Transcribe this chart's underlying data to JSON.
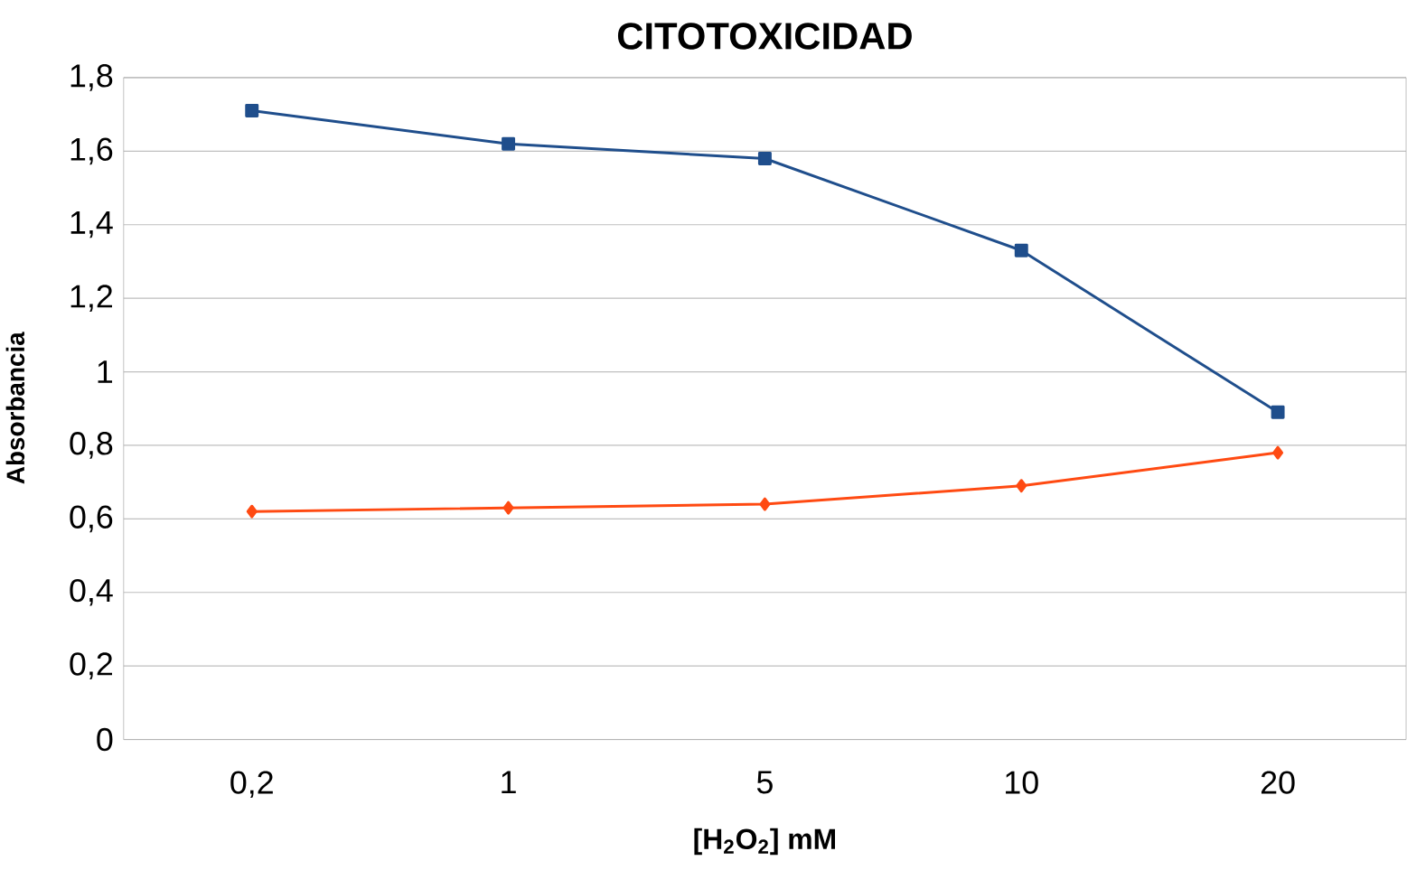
{
  "chart_data": {
    "type": "line",
    "title": "CITOTOXICIDAD",
    "xlabel": "[H$_{2}$O$_{2}$] mM",
    "ylabel": "Absorbancia",
    "categories": [
      "0,2",
      "1",
      "5",
      "10",
      "20"
    ],
    "series": [
      {
        "color": "#1f4e8c",
        "marker": "square",
        "values": [
          1.71,
          1.62,
          1.58,
          1.33,
          0.89
        ]
      },
      {
        "color": "#ff4a12",
        "marker": "diamond",
        "values": [
          0.62,
          0.63,
          0.64,
          0.69,
          0.78
        ]
      }
    ],
    "ylim": [
      0,
      1.8
    ],
    "yticks": [
      0,
      {
        "value": 0.2,
        "label": "0,2"
      },
      {
        "value": 0.4,
        "label": "0,4"
      },
      {
        "value": 0.6,
        "label": "0,6"
      },
      {
        "value": 0.8,
        "label": "0,8"
      },
      1,
      {
        "value": 1.2,
        "label": "1,2"
      },
      {
        "value": 1.4,
        "label": "1,4"
      },
      {
        "value": 1.6,
        "label": "1,6"
      },
      {
        "value": 1.8,
        "label": "1,8"
      }
    ],
    "grid": "y"
  }
}
